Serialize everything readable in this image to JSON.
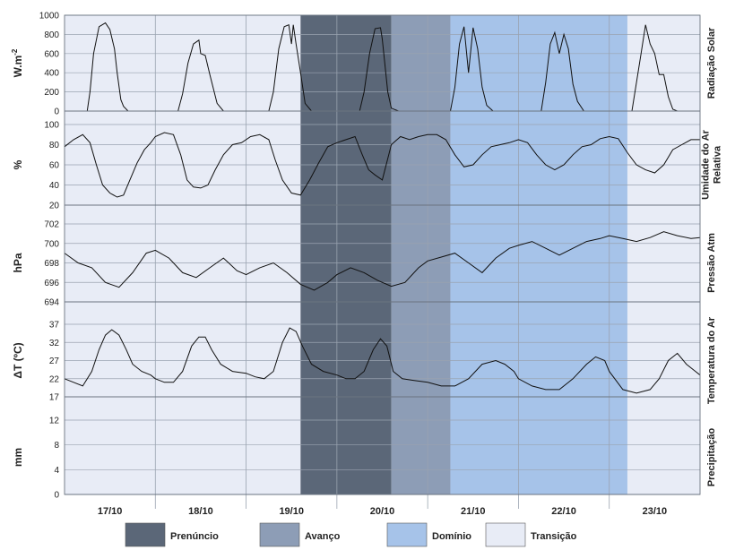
{
  "chart_data": {
    "type": "line",
    "x_categories": [
      "17/10",
      "18/10",
      "19/10",
      "20/10",
      "21/10",
      "22/10",
      "23/10"
    ],
    "phases": [
      {
        "name": "Transição",
        "from_day": 0,
        "to_day": 2.6,
        "color": "#e8ecf6"
      },
      {
        "name": "Prenúncio",
        "from_day": 2.6,
        "to_day": 3.6,
        "color": "#5b6778"
      },
      {
        "name": "Avanço",
        "from_day": 3.6,
        "to_day": 4.25,
        "color": "#8d9db6"
      },
      {
        "name": "Domínio",
        "from_day": 4.25,
        "to_day": 6.2,
        "color": "#a6c3e9"
      },
      {
        "name": "Transição",
        "from_day": 6.2,
        "to_day": 7.0,
        "color": "#e8ecf6"
      }
    ],
    "legend": [
      {
        "label": "Prenúncio",
        "color": "#5b6778"
      },
      {
        "label": "Avanço",
        "color": "#8d9db6"
      },
      {
        "label": "Domínio",
        "color": "#a6c3e9"
      },
      {
        "label": "Transição",
        "color": "#e8ecf6"
      }
    ],
    "panels": [
      {
        "id": "radiation",
        "unit_label": "W.m",
        "unit_sup": "-2",
        "var_label": [
          "Radiação Solar"
        ],
        "ylim": [
          0,
          1000
        ],
        "yticks": [
          "0",
          "200",
          "400",
          "600",
          "800",
          "1000"
        ],
        "ytick_values": [
          0,
          200,
          400,
          600,
          800,
          1000
        ],
        "x": [
          0,
          0.25,
          0.28,
          0.32,
          0.38,
          0.45,
          0.5,
          0.55,
          0.58,
          0.62,
          0.65,
          0.7,
          0.72,
          1.0,
          1.25,
          1.3,
          1.36,
          1.42,
          1.48,
          1.5,
          1.55,
          1.6,
          1.68,
          1.75,
          2.0,
          2.25,
          2.3,
          2.36,
          2.42,
          2.47,
          2.5,
          2.52,
          2.55,
          2.6,
          2.65,
          2.72,
          3.0,
          3.25,
          3.3,
          3.36,
          3.42,
          3.48,
          3.5,
          3.56,
          3.6,
          3.68,
          3.75,
          4.0,
          4.25,
          4.3,
          4.35,
          4.4,
          4.45,
          4.5,
          4.55,
          4.6,
          4.65,
          4.72,
          5.0,
          5.25,
          5.3,
          5.35,
          5.4,
          5.45,
          5.5,
          5.55,
          5.6,
          5.65,
          5.72,
          6.0,
          6.25,
          6.3,
          6.35,
          6.4,
          6.45,
          6.5,
          6.55,
          6.6,
          6.65,
          6.7,
          6.75,
          7.0
        ],
        "y": [
          0,
          0,
          200,
          600,
          880,
          920,
          850,
          650,
          400,
          120,
          50,
          0,
          0,
          0,
          0,
          180,
          500,
          700,
          740,
          600,
          580,
          380,
          80,
          0,
          0,
          0,
          200,
          650,
          880,
          900,
          700,
          900,
          700,
          400,
          80,
          0,
          0,
          0,
          200,
          600,
          860,
          870,
          750,
          200,
          30,
          0,
          0,
          0,
          0,
          250,
          700,
          880,
          400,
          870,
          650,
          250,
          60,
          0,
          0,
          0,
          300,
          700,
          820,
          600,
          800,
          650,
          280,
          100,
          0,
          0,
          0,
          300,
          600,
          900,
          700,
          600,
          380,
          380,
          150,
          20,
          0,
          0
        ]
      },
      {
        "id": "humidity",
        "unit_label": "%",
        "unit_sup": "",
        "var_label": [
          "Umidade do Ar",
          "Relativa"
        ],
        "ylim": [
          20,
          100
        ],
        "yticks": [
          "20",
          "40",
          "60",
          "80",
          "100"
        ],
        "ytick_values": [
          20,
          40,
          60,
          80,
          100
        ],
        "x": [
          0,
          0.1,
          0.2,
          0.28,
          0.35,
          0.42,
          0.5,
          0.58,
          0.65,
          0.72,
          0.8,
          0.88,
          0.95,
          1.0,
          1.1,
          1.2,
          1.28,
          1.35,
          1.42,
          1.5,
          1.58,
          1.66,
          1.75,
          1.85,
          1.95,
          2.05,
          2.15,
          2.25,
          2.32,
          2.4,
          2.5,
          2.6,
          2.7,
          2.8,
          2.9,
          3.0,
          3.1,
          3.2,
          3.28,
          3.35,
          3.42,
          3.5,
          3.6,
          3.7,
          3.8,
          3.9,
          4.0,
          4.1,
          4.2,
          4.3,
          4.4,
          4.5,
          4.6,
          4.7,
          4.8,
          4.9,
          5.0,
          5.1,
          5.2,
          5.3,
          5.4,
          5.5,
          5.6,
          5.7,
          5.8,
          5.9,
          6.0,
          6.1,
          6.2,
          6.3,
          6.4,
          6.5,
          6.6,
          6.7,
          6.8,
          6.9,
          7.0
        ],
        "y": [
          78,
          85,
          90,
          82,
          60,
          40,
          32,
          28,
          30,
          45,
          62,
          75,
          82,
          88,
          92,
          90,
          70,
          45,
          38,
          37,
          40,
          55,
          70,
          80,
          82,
          88,
          90,
          85,
          65,
          45,
          32,
          30,
          45,
          62,
          78,
          82,
          85,
          88,
          70,
          55,
          50,
          45,
          80,
          88,
          85,
          88,
          90,
          90,
          85,
          70,
          58,
          60,
          70,
          78,
          80,
          82,
          85,
          82,
          70,
          60,
          55,
          60,
          70,
          78,
          80,
          86,
          88,
          86,
          72,
          60,
          55,
          52,
          60,
          75,
          80,
          85,
          85
        ]
      },
      {
        "id": "pressure",
        "unit_label": "hPa",
        "unit_sup": "",
        "var_label": [
          "Pressão Atm"
        ],
        "ylim": [
          694,
          702
        ],
        "yticks": [
          "694",
          "696",
          "698",
          "700",
          "702"
        ],
        "ytick_values": [
          694,
          696,
          698,
          700,
          702
        ],
        "x": [
          0,
          0.15,
          0.3,
          0.45,
          0.6,
          0.75,
          0.9,
          1.0,
          1.15,
          1.3,
          1.45,
          1.6,
          1.75,
          1.9,
          2.0,
          2.15,
          2.3,
          2.45,
          2.6,
          2.75,
          2.9,
          3.0,
          3.15,
          3.3,
          3.45,
          3.6,
          3.75,
          3.9,
          4.0,
          4.15,
          4.3,
          4.45,
          4.6,
          4.75,
          4.9,
          5.0,
          5.15,
          5.3,
          5.45,
          5.6,
          5.75,
          5.9,
          6.0,
          6.15,
          6.3,
          6.45,
          6.6,
          6.75,
          6.9,
          7.0
        ],
        "y": [
          699,
          698,
          697.5,
          696,
          695.5,
          697,
          699,
          699.3,
          698.5,
          697,
          696.5,
          697.5,
          698.5,
          697.2,
          696.8,
          697.5,
          698,
          697,
          695.8,
          695.2,
          696,
          696.8,
          697.5,
          697,
          696.2,
          695.6,
          696,
          697.5,
          698.2,
          698.6,
          699,
          698,
          697,
          698.5,
          699.5,
          699.8,
          700.2,
          699.5,
          698.8,
          699.5,
          700.2,
          700.5,
          700.8,
          700.5,
          700.2,
          700.6,
          701.2,
          700.8,
          700.5,
          700.6
        ]
      },
      {
        "id": "temperature",
        "unit_label": "ΔT  (ºC)",
        "unit_sup": "",
        "var_label": [
          "Temperatura do Ar"
        ],
        "ylim": [
          17,
          37
        ],
        "yticks": [
          "17",
          "22",
          "27",
          "32",
          "37"
        ],
        "ytick_values": [
          17,
          22,
          27,
          32,
          37
        ],
        "x": [
          0,
          0.1,
          0.2,
          0.3,
          0.38,
          0.45,
          0.52,
          0.6,
          0.68,
          0.75,
          0.85,
          0.95,
          1.0,
          1.1,
          1.2,
          1.3,
          1.4,
          1.48,
          1.55,
          1.62,
          1.72,
          1.85,
          2.0,
          2.1,
          2.2,
          2.3,
          2.4,
          2.48,
          2.55,
          2.62,
          2.72,
          2.85,
          3.0,
          3.1,
          3.2,
          3.3,
          3.4,
          3.48,
          3.55,
          3.62,
          3.72,
          3.85,
          4.0,
          4.15,
          4.3,
          4.45,
          4.6,
          4.75,
          4.85,
          4.95,
          5.0,
          5.15,
          5.3,
          5.45,
          5.6,
          5.75,
          5.85,
          5.95,
          6.0,
          6.15,
          6.3,
          6.45,
          6.55,
          6.65,
          6.75,
          6.85,
          6.95,
          7.0
        ],
        "y": [
          22,
          21,
          20,
          24,
          30,
          34,
          35.5,
          34,
          30,
          26,
          24,
          23,
          22,
          21,
          21,
          24,
          31,
          33.5,
          33.5,
          30,
          26,
          24,
          23.5,
          22.5,
          22,
          24,
          32,
          36,
          35,
          31,
          26,
          24,
          23,
          22,
          22,
          24,
          30,
          33,
          31,
          24,
          22,
          21.5,
          21,
          20,
          20,
          22,
          26,
          27,
          26,
          24,
          22,
          20,
          19,
          19,
          22,
          26,
          28,
          27,
          24,
          19,
          18,
          19,
          22,
          27,
          29,
          26,
          24,
          23
        ]
      },
      {
        "id": "precipitation",
        "unit_label": "mm",
        "unit_sup": "",
        "var_label": [
          "Precipitação"
        ],
        "ylim": [
          0,
          12
        ],
        "yticks": [
          "0",
          "4",
          "8",
          "12"
        ],
        "ytick_values": [
          0,
          4,
          8,
          12
        ],
        "x": [
          0,
          7.0
        ],
        "y": [
          0,
          0
        ]
      }
    ]
  }
}
